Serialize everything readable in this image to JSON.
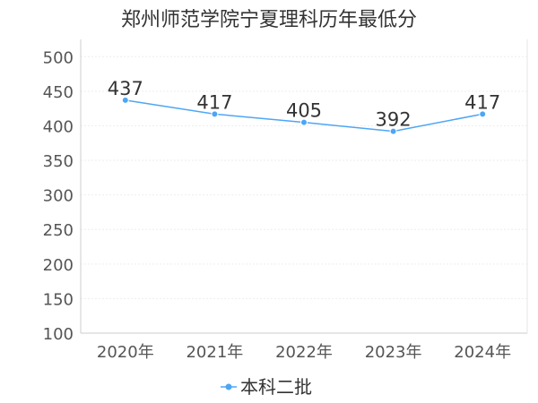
{
  "chart_data": {
    "type": "line",
    "title": "郑州师范学院宁夏理科历年最低分",
    "categories": [
      "2020年",
      "2021年",
      "2022年",
      "2023年",
      "2024年"
    ],
    "series": [
      {
        "name": "本科二批",
        "values": [
          437,
          417,
          405,
          392,
          417
        ],
        "color": "#4da6f5"
      }
    ],
    "yticks": [
      100,
      150,
      200,
      250,
      300,
      350,
      400,
      450,
      500
    ],
    "ylim": [
      100,
      525
    ],
    "grid": true,
    "legend_position": "bottom",
    "data_labels": true
  }
}
